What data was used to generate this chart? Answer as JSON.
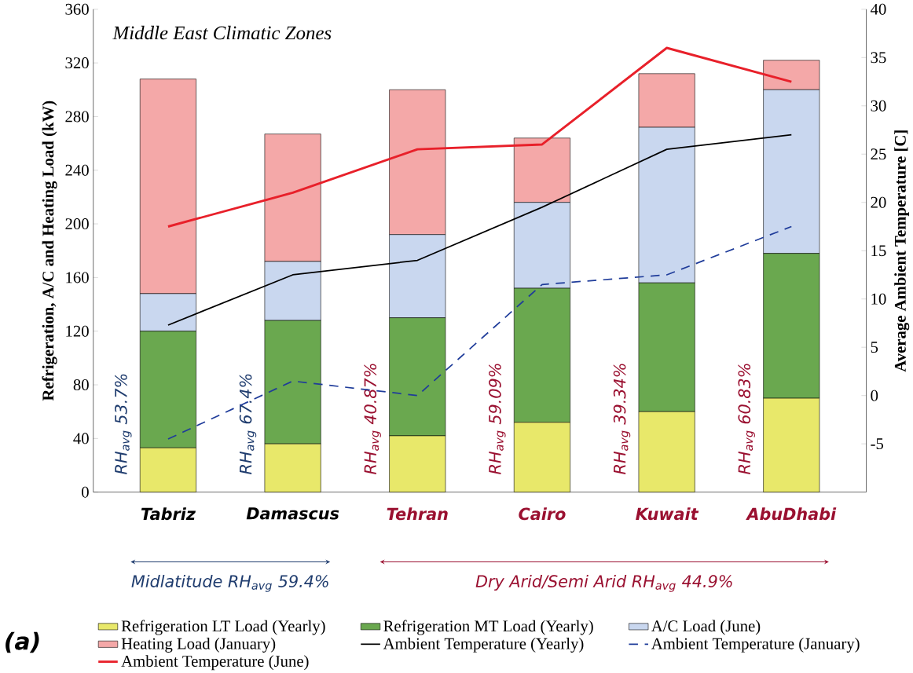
{
  "chart_data": {
    "type": "bar",
    "stacked": true,
    "title": "Middle East Climatic Zones",
    "categories": [
      "Tabriz",
      "Damascus",
      "Tehran",
      "Cairo",
      "Kuwait",
      "AbuDhabi"
    ],
    "ylabel": "Refrigeration, A/C and Heating Load (kW)",
    "y2label": "Average Ambient Temperature [C]",
    "ylim": [
      0,
      360
    ],
    "yticks": [
      0,
      40,
      80,
      120,
      160,
      200,
      240,
      280,
      320,
      360
    ],
    "y2lim": [
      -10,
      40
    ],
    "y2ticks": [
      -5,
      0,
      5,
      10,
      15,
      20,
      25,
      30,
      35,
      40
    ],
    "legend": "bottom",
    "series": [
      {
        "name": "Refrigeration LT Load (Yearly)",
        "color": "#e8e86a",
        "values": [
          33,
          36,
          42,
          52,
          60,
          70
        ]
      },
      {
        "name": "Refrigeration MT Load (Yearly)",
        "color": "#6aa84f",
        "values": [
          87,
          92,
          88,
          100,
          96,
          108
        ]
      },
      {
        "name": "A/C Load (June)",
        "color": "#c9d7ef",
        "values": [
          28,
          44,
          62,
          64,
          116,
          122
        ]
      },
      {
        "name": "Heating Load (January)",
        "color": "#f4a8a8",
        "values": [
          160,
          95,
          108,
          48,
          40,
          22
        ]
      },
      {
        "name": "Ambient Temperature (Yearly)",
        "type": "line",
        "axis": "y2",
        "color": "#000000",
        "line_style": "solid",
        "values": [
          7.3,
          12.5,
          14,
          19.5,
          25.5,
          27
        ]
      },
      {
        "name": "Ambient Temperature (January)",
        "type": "line",
        "axis": "y2",
        "color": "#1f3c9a",
        "line_style": "dashed",
        "values": [
          -4.5,
          1.5,
          0,
          11.5,
          12.5,
          17.5
        ]
      },
      {
        "name": "Ambient Temperature (June)",
        "type": "line",
        "axis": "y2",
        "color": "#e8202a",
        "line_style": "solid",
        "values": [
          17.5,
          21,
          25.5,
          26,
          36,
          32.5
        ]
      }
    ],
    "annotations": [
      "RH$_{avg}$ 53.7%",
      "RH$_{avg}$ 67.4%",
      "RH$_{avg}$ 40.87%",
      "RH$_{avg}$ 59.09%",
      "RH$_{avg}$ 39.34%",
      "RH$_{avg}$ 60.83%",
      "Midlatitude RH$_{avg}$ 59.4%",
      "Dry Arid/Semi Arid RH$_{avg}$ 44.9%",
      "(a)"
    ]
  }
}
